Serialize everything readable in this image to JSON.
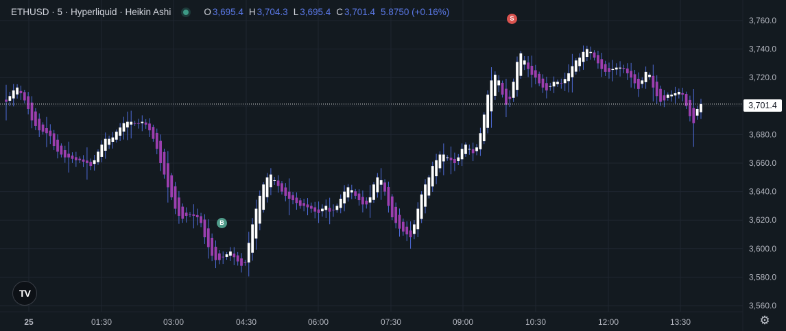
{
  "legend": {
    "symbol": "ETHUSD · 5 · Hyperliquid · Heikin Ashi",
    "open_key": "O",
    "open": "3,695.4",
    "high_key": "H",
    "high": "3,704.3",
    "low_key": "L",
    "low": "3,695.4",
    "close_key": "C",
    "close": "3,701.4",
    "change": "5.8750 (+0.16%)",
    "status_color": "#3d9a86"
  },
  "last_price": "3,701.4",
  "markers": {
    "buy": "B",
    "sell": "S"
  },
  "logo_text": "TV",
  "settings_icon": "gear-icon",
  "colors": {
    "up": "#ffffff",
    "down": "#9c3fb0",
    "wick": "#4e6bd8",
    "background": "#131a20",
    "grid": "#1f2630"
  },
  "chart_data": {
    "type": "candlestick",
    "style": "Heikin Ashi",
    "symbol": "ETHUSD",
    "interval": "5",
    "exchange": "Hyperliquid",
    "ylim": [
      3550,
      3770
    ],
    "y_ticks": [
      "3,760.0",
      "3,740.0",
      "3,720.0",
      "3,700.0",
      "3,680.0",
      "3,660.0",
      "3,640.0",
      "3,620.0",
      "3,600.0",
      "3,580.0",
      "3,560.0"
    ],
    "x_ticks": [
      "25",
      "01:30",
      "03:00",
      "04:30",
      "06:00",
      "07:30",
      "09:00",
      "10:30",
      "12:00",
      "13:30"
    ],
    "grid": true,
    "last_price": 3701.4,
    "closes": [
      3703,
      3707,
      3711,
      3713,
      3709,
      3704,
      3698,
      3690,
      3686,
      3683,
      3682,
      3681,
      3679,
      3672,
      3668,
      3666,
      3664,
      3664,
      3663,
      3662,
      3662,
      3661,
      3660,
      3658,
      3662,
      3668,
      3673,
      3677,
      3677,
      3678,
      3682,
      3685,
      3688,
      3689,
      3689,
      3688,
      3688,
      3689,
      3687,
      3683,
      3677,
      3670,
      3660,
      3652,
      3643,
      3636,
      3628,
      3623,
      3621,
      3623,
      3624,
      3623,
      3622,
      3618,
      3608,
      3601,
      3595,
      3592,
      3592,
      3594,
      3596,
      3598,
      3594,
      3591,
      3588,
      3590,
      3604,
      3617,
      3628,
      3637,
      3645,
      3650,
      3652,
      3648,
      3644,
      3640,
      3637,
      3635,
      3634,
      3632,
      3630,
      3630,
      3629,
      3628,
      3626,
      3625,
      3628,
      3630,
      3626,
      3627,
      3630,
      3635,
      3640,
      3643,
      3641,
      3637,
      3634,
      3631,
      3631,
      3636,
      3645,
      3650,
      3648,
      3640,
      3630,
      3622,
      3618,
      3614,
      3612,
      3610,
      3608,
      3617,
      3628,
      3638,
      3645,
      3650,
      3658,
      3662,
      3666,
      3666,
      3664,
      3662,
      3660,
      3664,
      3670,
      3673,
      3670,
      3667,
      3671,
      3681,
      3694,
      3708,
      3718,
      3722,
      3718,
      3708,
      3701,
      3705,
      3717,
      3731,
      3737,
      3732,
      3726,
      3722,
      3720,
      3716,
      3713,
      3711,
      3714,
      3717,
      3717,
      3716,
      3719,
      3723,
      3728,
      3732,
      3734,
      3738,
      3740,
      3738,
      3734,
      3730,
      3726,
      3724,
      3724,
      3726,
      3727,
      3727,
      3726,
      3723,
      3720,
      3716,
      3712,
      3718,
      3724,
      3722,
      3713,
      3707,
      3703,
      3704,
      3708,
      3708,
      3709,
      3710,
      3708,
      3700,
      3693,
      3688,
      3698,
      3701.4
    ]
  }
}
